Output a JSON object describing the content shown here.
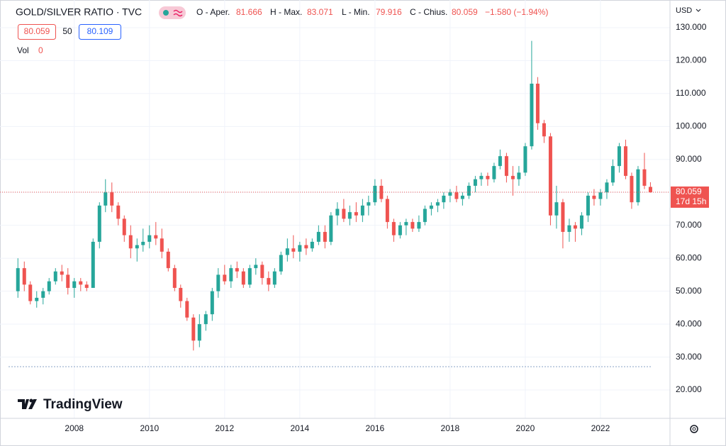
{
  "chart_data": {
    "type": "candlestick",
    "title": "GOLD/SILVER RATIO · TVC",
    "ohlc_labels": [
      "O - Aper.",
      "H - Max.",
      "L - Min.",
      "C - Chius."
    ],
    "change": "−1.580 (−1.94%)",
    "spread": 50,
    "ask": 80.109,
    "volume_label": "Vol",
    "volume": 0,
    "currency": "USD",
    "countdown": "17d 15h",
    "brand": "TradingView",
    "up_color": "#26a69a",
    "down_color": "#ef5350",
    "grid": true,
    "lower_line": 27.1,
    "x": [
      2006.5,
      2006.67,
      2006.83,
      2007,
      2007.17,
      2007.33,
      2007.5,
      2007.67,
      2007.83,
      2008,
      2008.17,
      2008.33,
      2008.5,
      2008.67,
      2008.83,
      2009,
      2009.17,
      2009.33,
      2009.5,
      2009.67,
      2009.83,
      2010,
      2010.17,
      2010.33,
      2010.5,
      2010.67,
      2010.83,
      2011,
      2011.17,
      2011.33,
      2011.5,
      2011.67,
      2011.83,
      2012,
      2012.17,
      2012.33,
      2012.5,
      2012.67,
      2012.83,
      2013,
      2013.17,
      2013.33,
      2013.5,
      2013.67,
      2013.83,
      2014,
      2014.17,
      2014.33,
      2014.5,
      2014.67,
      2014.83,
      2015,
      2015.17,
      2015.33,
      2015.5,
      2015.67,
      2015.83,
      2016,
      2016.17,
      2016.33,
      2016.5,
      2016.67,
      2016.83,
      2017,
      2017.17,
      2017.33,
      2017.5,
      2017.67,
      2017.83,
      2018,
      2018.17,
      2018.33,
      2018.5,
      2018.67,
      2018.83,
      2019,
      2019.17,
      2019.33,
      2019.5,
      2019.67,
      2019.83,
      2020,
      2020.17,
      2020.33,
      2020.5,
      2020.67,
      2020.83,
      2021,
      2021.17,
      2021.33,
      2021.5,
      2021.67,
      2021.83,
      2022,
      2022.17,
      2022.33,
      2022.5,
      2022.67,
      2022.83,
      2023,
      2023.17,
      2023.33
    ],
    "open": [
      50,
      57,
      52,
      47,
      48,
      50,
      53,
      56,
      55,
      51,
      53,
      52,
      51,
      65,
      76,
      80,
      76,
      72,
      67,
      63,
      64,
      65,
      67,
      66,
      62,
      57,
      51,
      47,
      42,
      35,
      40,
      43,
      50,
      55,
      53,
      57,
      56,
      52,
      57,
      58,
      54,
      52,
      56,
      61,
      63,
      62,
      64,
      63,
      65,
      68,
      65,
      73,
      75,
      72,
      74,
      73,
      76,
      77,
      82,
      78,
      71,
      67,
      70,
      71,
      69,
      71,
      75,
      76,
      77,
      79,
      80,
      78,
      79,
      82,
      84,
      85,
      84,
      88,
      91,
      85,
      84,
      86,
      94,
      113,
      101,
      97,
      73,
      77,
      68,
      70,
      69,
      73,
      79,
      78,
      80,
      83,
      88,
      94,
      85,
      77,
      87,
      81.666
    ],
    "high": [
      60,
      59,
      53,
      50,
      51,
      54,
      57,
      58,
      57,
      54,
      54,
      53,
      66,
      77,
      84,
      83,
      77,
      73,
      70,
      66,
      69,
      70,
      71,
      69,
      63,
      58,
      52,
      48,
      43,
      43,
      44,
      51,
      57,
      58,
      58,
      59,
      57,
      58,
      60,
      59,
      56,
      57,
      62,
      66,
      67,
      65,
      66,
      66,
      70,
      70,
      74,
      77,
      78,
      76,
      77,
      78,
      79,
      84,
      84,
      79,
      72,
      71,
      72,
      72,
      73,
      76,
      77,
      78,
      80,
      81,
      82,
      80,
      83,
      85,
      86,
      86,
      89,
      93,
      92,
      88,
      88,
      95,
      126,
      115,
      102,
      98,
      82,
      78,
      72,
      71,
      74,
      80,
      81,
      81,
      84,
      90,
      95,
      96,
      86,
      88,
      92,
      83.071
    ],
    "low": [
      48,
      50,
      46,
      45,
      46,
      49,
      52,
      53,
      49,
      48,
      50,
      50,
      51,
      63,
      74,
      74,
      70,
      65,
      60,
      59,
      62,
      63,
      64,
      60,
      56,
      50,
      45,
      41,
      32,
      33,
      38,
      41,
      48,
      52,
      51,
      54,
      51,
      51,
      55,
      52,
      50,
      51,
      55,
      59,
      60,
      59,
      61,
      62,
      64,
      63,
      64,
      70,
      71,
      70,
      71,
      71,
      73,
      76,
      77,
      69,
      65,
      66,
      67,
      68,
      68,
      70,
      73,
      74,
      75,
      77,
      77,
      76,
      78,
      80,
      82,
      82,
      83,
      87,
      83,
      79,
      82,
      85,
      93,
      99,
      95,
      70,
      69,
      63,
      65,
      65,
      67,
      71,
      76,
      76,
      78,
      82,
      86,
      84,
      75,
      76,
      81,
      79.916
    ],
    "close": [
      57,
      52,
      47,
      48,
      50,
      53,
      56,
      55,
      51,
      53,
      52,
      51,
      65,
      76,
      80,
      76,
      72,
      67,
      63,
      64,
      65,
      67,
      66,
      62,
      57,
      51,
      47,
      42,
      35,
      40,
      43,
      50,
      55,
      53,
      57,
      56,
      52,
      57,
      58,
      54,
      52,
      56,
      61,
      63,
      62,
      64,
      63,
      65,
      68,
      65,
      73,
      75,
      72,
      74,
      73,
      76,
      77,
      82,
      78,
      71,
      67,
      70,
      71,
      69,
      71,
      75,
      76,
      77,
      79,
      80,
      78,
      79,
      82,
      84,
      85,
      84,
      88,
      91,
      85,
      84,
      86,
      94,
      113,
      101,
      97,
      73,
      77,
      68,
      70,
      69,
      73,
      79,
      78,
      80,
      83,
      88,
      94,
      85,
      77,
      87,
      82,
      80.059
    ],
    "xlim": [
      2006.25,
      2023.85
    ],
    "xticks": [
      2008,
      2010,
      2012,
      2014,
      2016,
      2018,
      2020,
      2022
    ],
    "ylim": [
      11.4,
      138.4
    ],
    "yticks": [
      {
        "value": 20,
        "label": "20.000"
      },
      {
        "value": 30,
        "label": "30.000"
      },
      {
        "value": 40,
        "label": "40.000"
      },
      {
        "value": 50,
        "label": "50.000"
      },
      {
        "value": 60,
        "label": "60.000"
      },
      {
        "value": 70,
        "label": "70.000"
      },
      {
        "value": 80,
        "label": "80.000"
      },
      {
        "value": 90,
        "label": "90.000"
      },
      {
        "value": 100,
        "label": "100.000"
      },
      {
        "value": 110,
        "label": "110.000"
      },
      {
        "value": 120,
        "label": "120.000"
      },
      {
        "value": 130,
        "label": "130.000"
      }
    ]
  }
}
